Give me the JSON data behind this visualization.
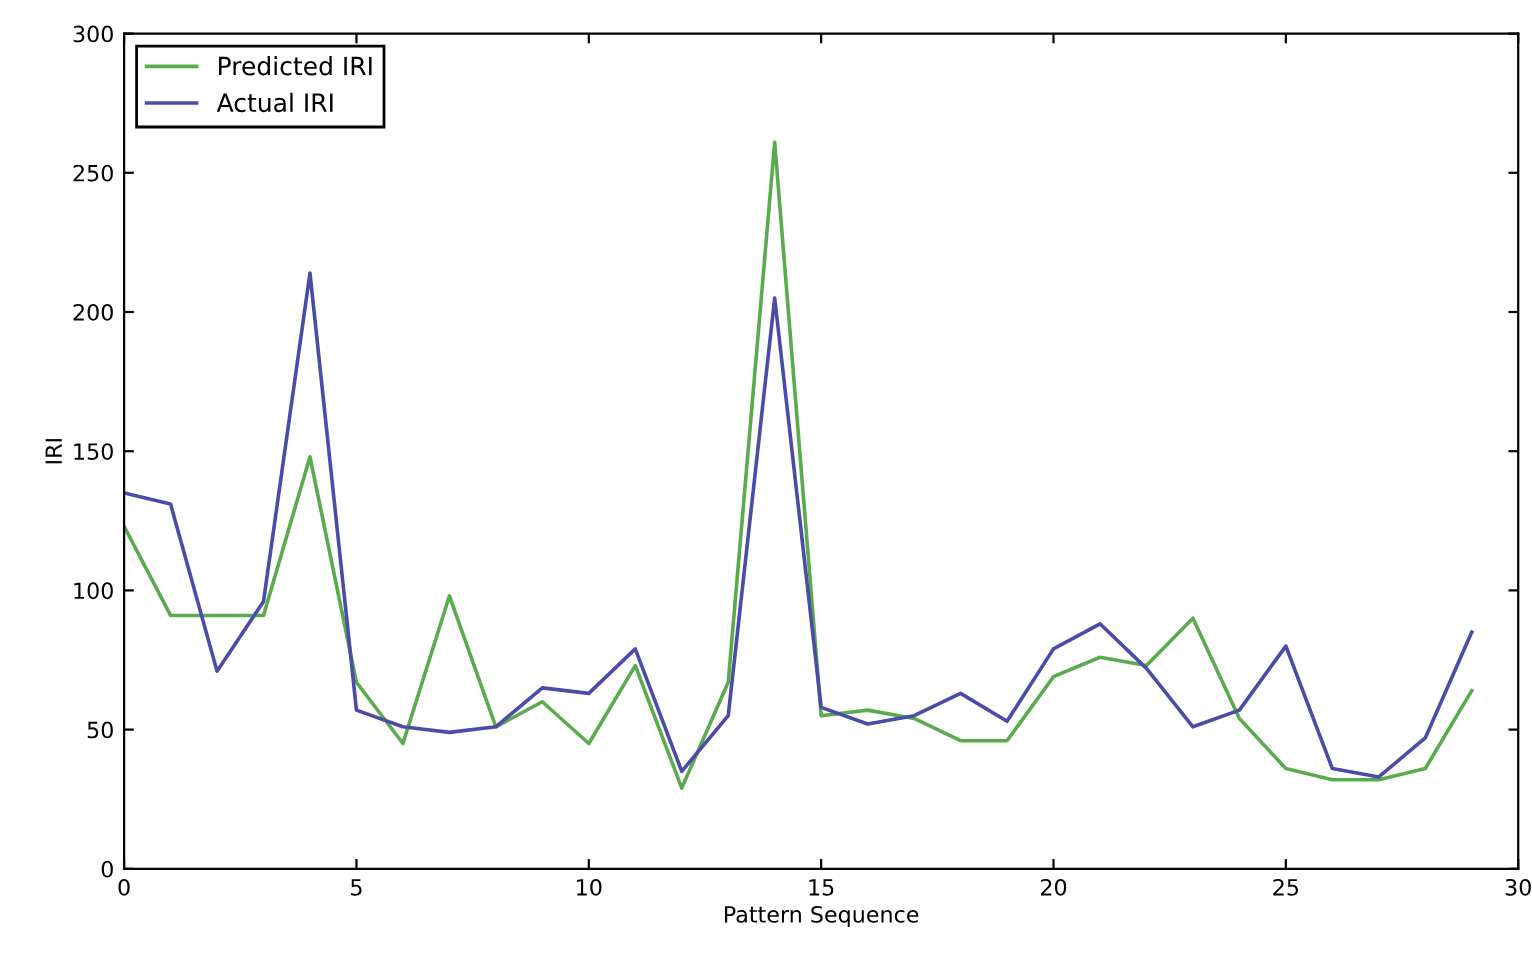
{
  "chart_data": {
    "type": "line",
    "xlabel": "Pattern Sequence",
    "ylabel": "IRI",
    "x": [
      0,
      1,
      2,
      3,
      4,
      5,
      6,
      7,
      8,
      9,
      10,
      11,
      12,
      13,
      14,
      15,
      16,
      17,
      18,
      19,
      20,
      21,
      22,
      23,
      24,
      25,
      26,
      27,
      28,
      29
    ],
    "series": [
      {
        "name": "Predicted IRI",
        "color": "#5aab4e",
        "values": [
          123,
          91,
          91,
          91,
          148,
          67,
          45,
          98,
          51,
          60,
          45,
          73,
          29,
          67,
          261,
          55,
          57,
          54,
          46,
          46,
          69,
          76,
          73,
          90,
          54,
          36,
          32,
          32,
          36,
          64
        ]
      },
      {
        "name": "Actual IRI",
        "color": "#4b4ba8",
        "values": [
          135,
          131,
          71,
          96,
          214,
          57,
          51,
          49,
          51,
          65,
          63,
          79,
          35,
          55,
          205,
          58,
          52,
          55,
          63,
          53,
          79,
          88,
          72,
          51,
          57,
          80,
          36,
          33,
          47,
          85
        ]
      }
    ],
    "xlim": [
      0,
      30
    ],
    "xticks": [
      0,
      5,
      10,
      15,
      20,
      25,
      30
    ],
    "ylim": [
      0,
      300
    ],
    "yticks": [
      0,
      50,
      100,
      150,
      200,
      250,
      300
    ],
    "grid": false,
    "legend": "top left",
    "marker": "none",
    "line_style": "solid"
  }
}
